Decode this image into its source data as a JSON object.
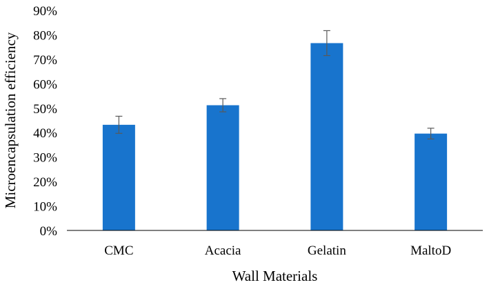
{
  "chart_data": {
    "type": "bar",
    "title": "",
    "xlabel": "Wall Materials",
    "ylabel": "Microencapsulation efficiency",
    "categories": [
      "CMC",
      "Acacia",
      "Gelatin",
      "MaltoD"
    ],
    "values": [
      0.432,
      0.512,
      0.766,
      0.396
    ],
    "errors": [
      0.035,
      0.027,
      0.051,
      0.022
    ],
    "ylim": [
      0,
      0.9
    ],
    "yticks": [
      0,
      0.1,
      0.2,
      0.3,
      0.4,
      0.5,
      0.6,
      0.7,
      0.8,
      0.9
    ],
    "ytick_labels": [
      "0%",
      "10%",
      "20%",
      "30%",
      "40%",
      "50%",
      "60%",
      "70%",
      "80%",
      "90%"
    ],
    "grid": false,
    "legend": "none",
    "bar_color": "#1874CD",
    "error_bar_color": "#595959",
    "axis_color": "#000000"
  }
}
